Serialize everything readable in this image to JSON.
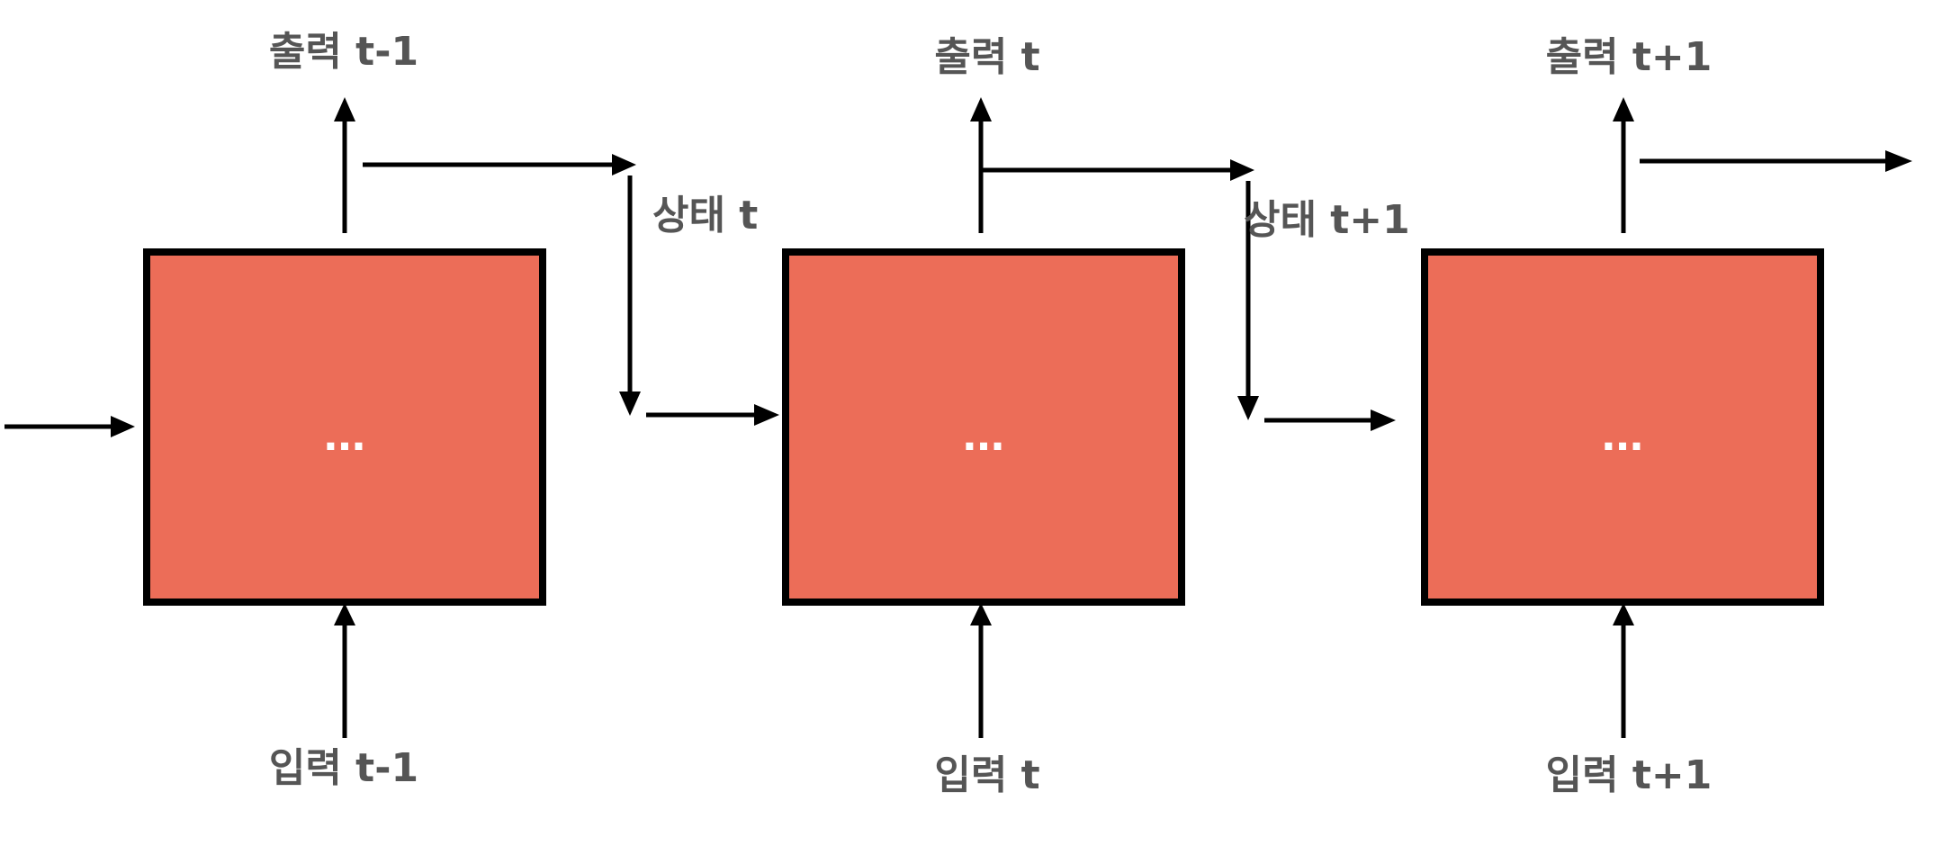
{
  "colors": {
    "cell_fill": "#EC6D58",
    "cell_border": "#000000",
    "label_text": "#555555",
    "ellipsis_text": "#FFFFFF",
    "arrow": "#000000"
  },
  "cells": [
    {
      "output_label": "출력 t-1",
      "input_label": "입력 t-1",
      "body_text": "..."
    },
    {
      "output_label": "출력 t",
      "input_label": "입력 t",
      "body_text": "..."
    },
    {
      "output_label": "출력 t+1",
      "input_label": "입력 t+1",
      "body_text": "..."
    }
  ],
  "states": [
    {
      "label": "상태 t"
    },
    {
      "label": "상태 t+1"
    }
  ]
}
